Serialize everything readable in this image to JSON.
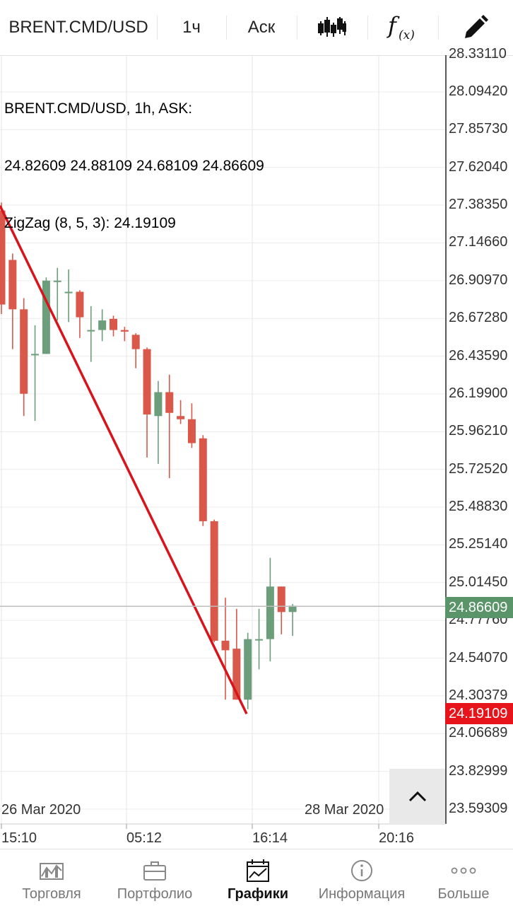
{
  "toolbar": {
    "symbol": "BRENT.CMD/USD",
    "timeframe": "1ч",
    "price_type": "Аск",
    "chart_type_icon": "candlestick-icon",
    "indicators_icon": "function-icon",
    "draw_icon": "pencil-icon"
  },
  "info": {
    "line1": "BRENT.CMD/USD, 1h, ASK:",
    "line2": "24.82609 24.88109 24.68109 24.86609",
    "line3": "ZigZag (8, 5, 3): 24.19109"
  },
  "chart_data": {
    "type": "candlestick",
    "price_axis": [
      "28.33110",
      "28.09420",
      "27.85730",
      "27.62040",
      "27.38350",
      "27.14660",
      "26.90970",
      "26.67280",
      "26.43590",
      "26.19900",
      "25.96210",
      "25.72520",
      "25.48830",
      "25.25140",
      "25.01450",
      "24.77760",
      "24.54070",
      "24.30379",
      "24.06689",
      "23.82999",
      "23.59309"
    ],
    "time_axis": [
      "15:10",
      "05:12",
      "16:14",
      "20:16"
    ],
    "date_labels": [
      "26 Mar 2020",
      "28 Mar 2020"
    ],
    "current_price": "24.86609",
    "zigzag_price": "24.19109",
    "colors": {
      "up": "#6d9e7c",
      "down": "#d9584a",
      "zigzag": "#d8141a",
      "current": "#5a9469",
      "zigzag_tag": "#e8141c"
    },
    "candles": [
      {
        "o": 27.35,
        "h": 27.4,
        "l": 26.7,
        "c": 26.76
      },
      {
        "o": 27.04,
        "h": 27.08,
        "l": 26.48,
        "c": 26.73
      },
      {
        "o": 26.73,
        "h": 26.8,
        "l": 26.06,
        "c": 26.2
      },
      {
        "o": 26.45,
        "h": 26.63,
        "l": 26.03,
        "c": 26.45
      },
      {
        "o": 26.45,
        "h": 26.93,
        "l": 26.45,
        "c": 26.91
      },
      {
        "o": 26.91,
        "h": 26.99,
        "l": 26.66,
        "c": 26.91
      },
      {
        "o": 26.84,
        "h": 26.98,
        "l": 26.65,
        "c": 26.84
      },
      {
        "o": 26.84,
        "h": 26.85,
        "l": 26.55,
        "c": 26.68
      },
      {
        "o": 26.6,
        "h": 26.75,
        "l": 26.4,
        "c": 26.6
      },
      {
        "o": 26.6,
        "h": 26.73,
        "l": 26.53,
        "c": 26.66
      },
      {
        "o": 26.67,
        "h": 26.69,
        "l": 26.56,
        "c": 26.6
      },
      {
        "o": 26.6,
        "h": 26.62,
        "l": 26.53,
        "c": 26.59
      },
      {
        "o": 26.57,
        "h": 26.58,
        "l": 26.36,
        "c": 26.48
      },
      {
        "o": 26.48,
        "h": 26.49,
        "l": 25.8,
        "c": 26.07
      },
      {
        "o": 26.06,
        "h": 26.28,
        "l": 25.76,
        "c": 26.21
      },
      {
        "o": 26.21,
        "h": 26.32,
        "l": 25.67,
        "c": 26.08
      },
      {
        "o": 26.06,
        "h": 26.16,
        "l": 26.01,
        "c": 26.04
      },
      {
        "o": 26.04,
        "h": 26.14,
        "l": 25.86,
        "c": 25.89
      },
      {
        "o": 25.92,
        "h": 25.94,
        "l": 25.37,
        "c": 25.4
      },
      {
        "o": 25.4,
        "h": 25.41,
        "l": 24.64,
        "c": 24.65
      },
      {
        "o": 24.65,
        "h": 24.92,
        "l": 24.28,
        "c": 24.59
      },
      {
        "o": 24.6,
        "h": 24.85,
        "l": 24.28,
        "c": 24.28
      },
      {
        "o": 24.28,
        "h": 24.7,
        "l": 24.22,
        "c": 24.66
      },
      {
        "o": 24.66,
        "h": 24.85,
        "l": 24.47,
        "c": 24.66
      },
      {
        "o": 24.66,
        "h": 25.17,
        "l": 24.52,
        "c": 24.99
      },
      {
        "o": 24.99,
        "h": 24.99,
        "l": 24.69,
        "c": 24.83
      },
      {
        "o": 24.83,
        "h": 24.88,
        "l": 24.68,
        "c": 24.87
      }
    ]
  },
  "scroll_icon": "chevron-up-icon",
  "tabs": [
    {
      "label": "Торговля",
      "icon": "trading-chart-icon"
    },
    {
      "label": "Портфолио",
      "icon": "briefcase-icon"
    },
    {
      "label": "Графики",
      "icon": "charts-icon"
    },
    {
      "label": "Информация",
      "icon": "info-icon"
    },
    {
      "label": "Больше",
      "icon": "more-icon"
    }
  ]
}
